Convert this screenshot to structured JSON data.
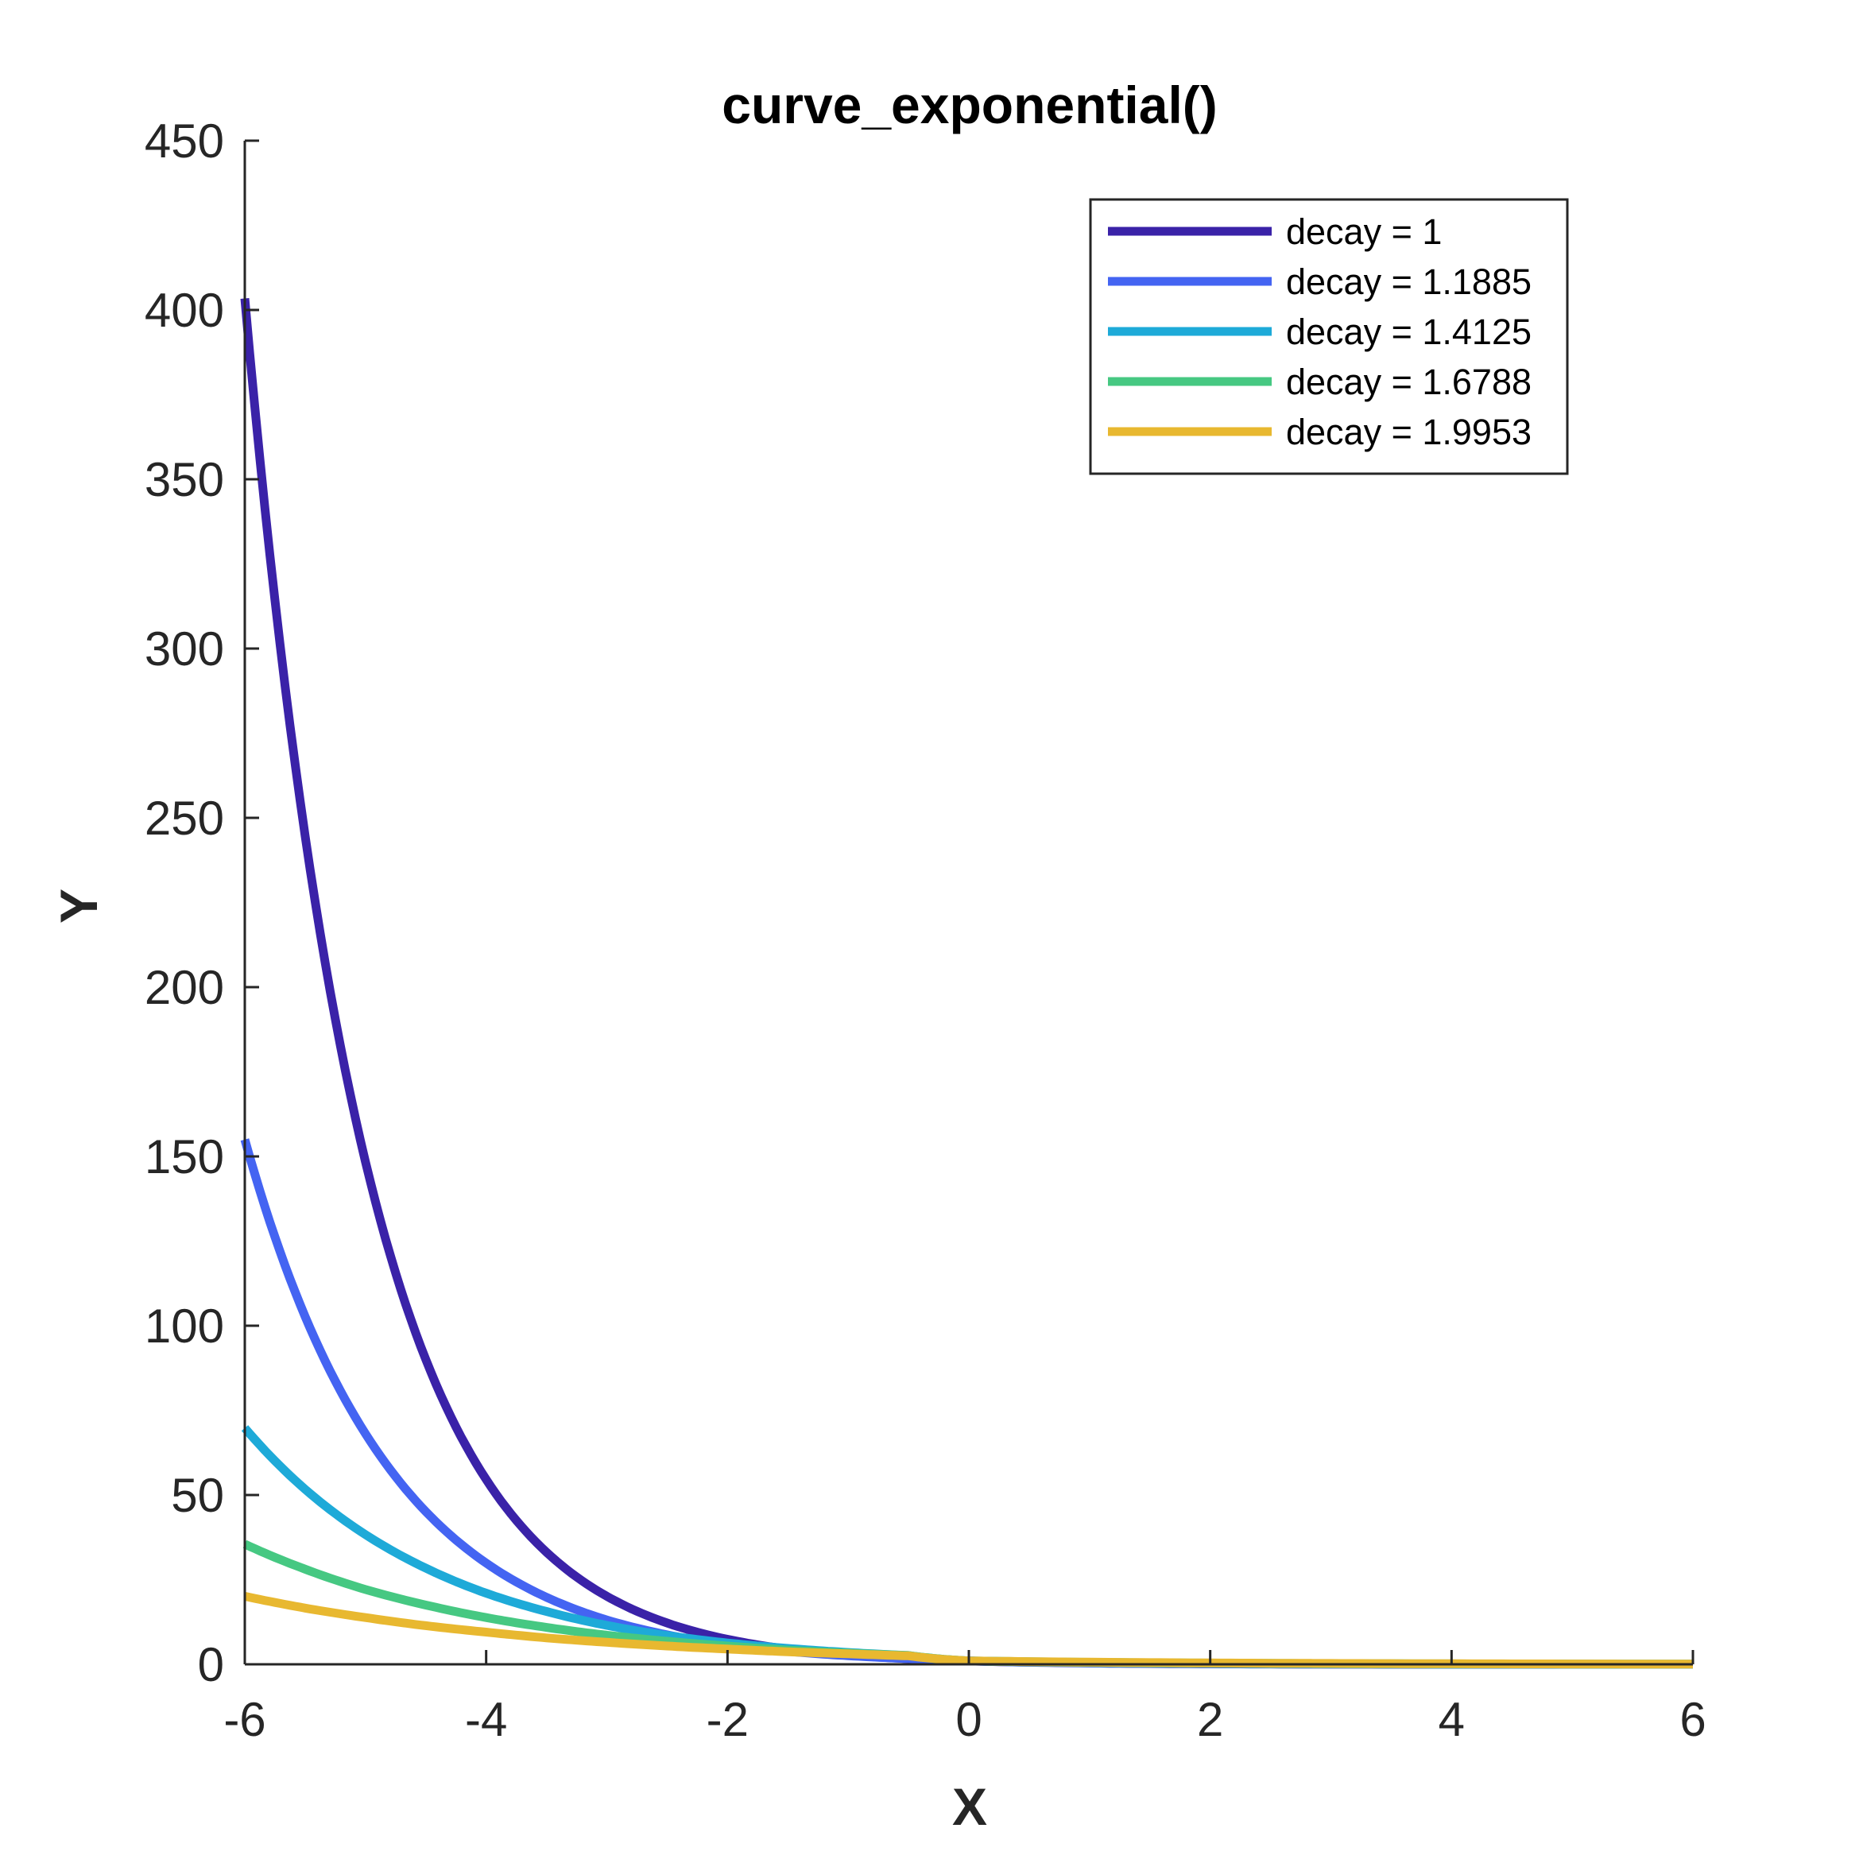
{
  "chart_data": {
    "type": "line",
    "title": "curve_exponential()",
    "xlabel": "X",
    "ylabel": "Y",
    "xlim": [
      -6,
      6
    ],
    "ylim": [
      0,
      450
    ],
    "xticks": [
      -6,
      -4,
      -2,
      0,
      2,
      4,
      6
    ],
    "yticks": [
      0,
      50,
      100,
      150,
      200,
      250,
      300,
      350,
      400,
      450
    ],
    "grid": false,
    "legend_position": "top-right",
    "series": [
      {
        "name": "decay = 1",
        "decay": 1,
        "color": "#3a22a8",
        "x": [
          -6,
          -5.5,
          -5,
          -4.5,
          -4,
          -3.5,
          -3,
          -2.5,
          -2,
          -1.5,
          -1,
          -0.5,
          0,
          1,
          2,
          3,
          4,
          5,
          6
        ],
        "y": [
          403.4,
          244.7,
          148.4,
          90.0,
          54.6,
          33.1,
          20.1,
          12.2,
          7.39,
          4.48,
          2.72,
          1.65,
          1.0,
          0.37,
          0.14,
          0.05,
          0.02,
          0.01,
          0.0
        ]
      },
      {
        "name": "decay = 1.1885",
        "decay": 1.1885,
        "color": "#4464f2",
        "x": [
          -6,
          -5.5,
          -5,
          -4.5,
          -4,
          -3.5,
          -3,
          -2.5,
          -2,
          -1.5,
          -1,
          -0.5,
          0,
          1,
          2,
          3,
          4,
          5,
          6
        ],
        "y": [
          155.0,
          102.7,
          68.1,
          45.1,
          29.9,
          19.8,
          13.1,
          8.7,
          5.76,
          3.82,
          2.53,
          1.68,
          1.0,
          0.44,
          0.19,
          0.08,
          0.03,
          0.01,
          0.01
        ]
      },
      {
        "name": "decay = 1.4125",
        "decay": 1.4125,
        "color": "#1eaad8",
        "x": [
          -6,
          -5.5,
          -5,
          -4.5,
          -4,
          -3.5,
          -3,
          -2.5,
          -2,
          -1.5,
          -1,
          -0.5,
          0,
          1,
          2,
          3,
          4,
          5,
          6
        ],
        "y": [
          69.8,
          51.7,
          38.3,
          28.4,
          21.0,
          15.6,
          11.5,
          8.5,
          6.3,
          4.7,
          3.5,
          2.6,
          1.0,
          0.52,
          0.27,
          0.14,
          0.07,
          0.04,
          0.02
        ]
      },
      {
        "name": "decay = 1.6788",
        "decay": 1.6788,
        "color": "#46c882",
        "x": [
          -6,
          -5.5,
          -5,
          -4.5,
          -4,
          -3.5,
          -3,
          -2.5,
          -2,
          -1.5,
          -1,
          -0.5,
          0,
          1,
          2,
          3,
          4,
          5,
          6
        ],
        "y": [
          35.5,
          28.1,
          22.1,
          17.5,
          13.8,
          10.9,
          8.6,
          6.8,
          5.4,
          4.2,
          3.3,
          2.6,
          1.0,
          0.59,
          0.35,
          0.21,
          0.13,
          0.08,
          0.05
        ]
      },
      {
        "name": "decay = 1.9953",
        "decay": 1.9953,
        "color": "#e8b830",
        "x": [
          -6,
          -5.5,
          -5,
          -4.5,
          -4,
          -3.5,
          -3,
          -2.5,
          -2,
          -1.5,
          -1,
          -0.5,
          0,
          1,
          2,
          3,
          4,
          5,
          6
        ],
        "y": [
          20.1,
          16.6,
          13.8,
          11.4,
          9.5,
          7.8,
          6.5,
          5.4,
          4.5,
          3.7,
          3.1,
          2.5,
          1.0,
          0.63,
          0.4,
          0.25,
          0.16,
          0.1,
          0.06
        ]
      }
    ]
  }
}
